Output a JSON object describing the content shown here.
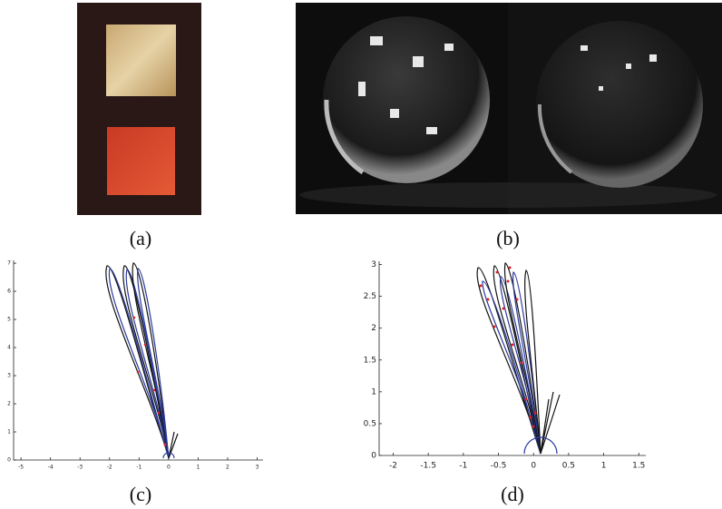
{
  "figure": {
    "panels": [
      {
        "caption": "(a)"
      },
      {
        "caption": "(b)"
      },
      {
        "caption": "(c)",
        "xlim": [
          -5.25,
          3.2
        ],
        "ylim": [
          0,
          7.1
        ],
        "xticks": [
          -5,
          -4,
          -3,
          -2,
          -1,
          0,
          1,
          2,
          3
        ],
        "yticks": [
          0,
          1,
          2,
          3,
          4,
          5,
          6,
          7
        ]
      },
      {
        "caption": "(d)",
        "xlim": [
          -2.2,
          1.6
        ],
        "ylim": [
          0,
          3.05
        ],
        "xticks": [
          -2,
          -1.5,
          -1,
          -0.5,
          0,
          0.5,
          1,
          1.5
        ],
        "yticks": [
          0,
          0.5,
          1,
          1.5,
          2,
          2.5,
          3
        ]
      }
    ]
  }
}
